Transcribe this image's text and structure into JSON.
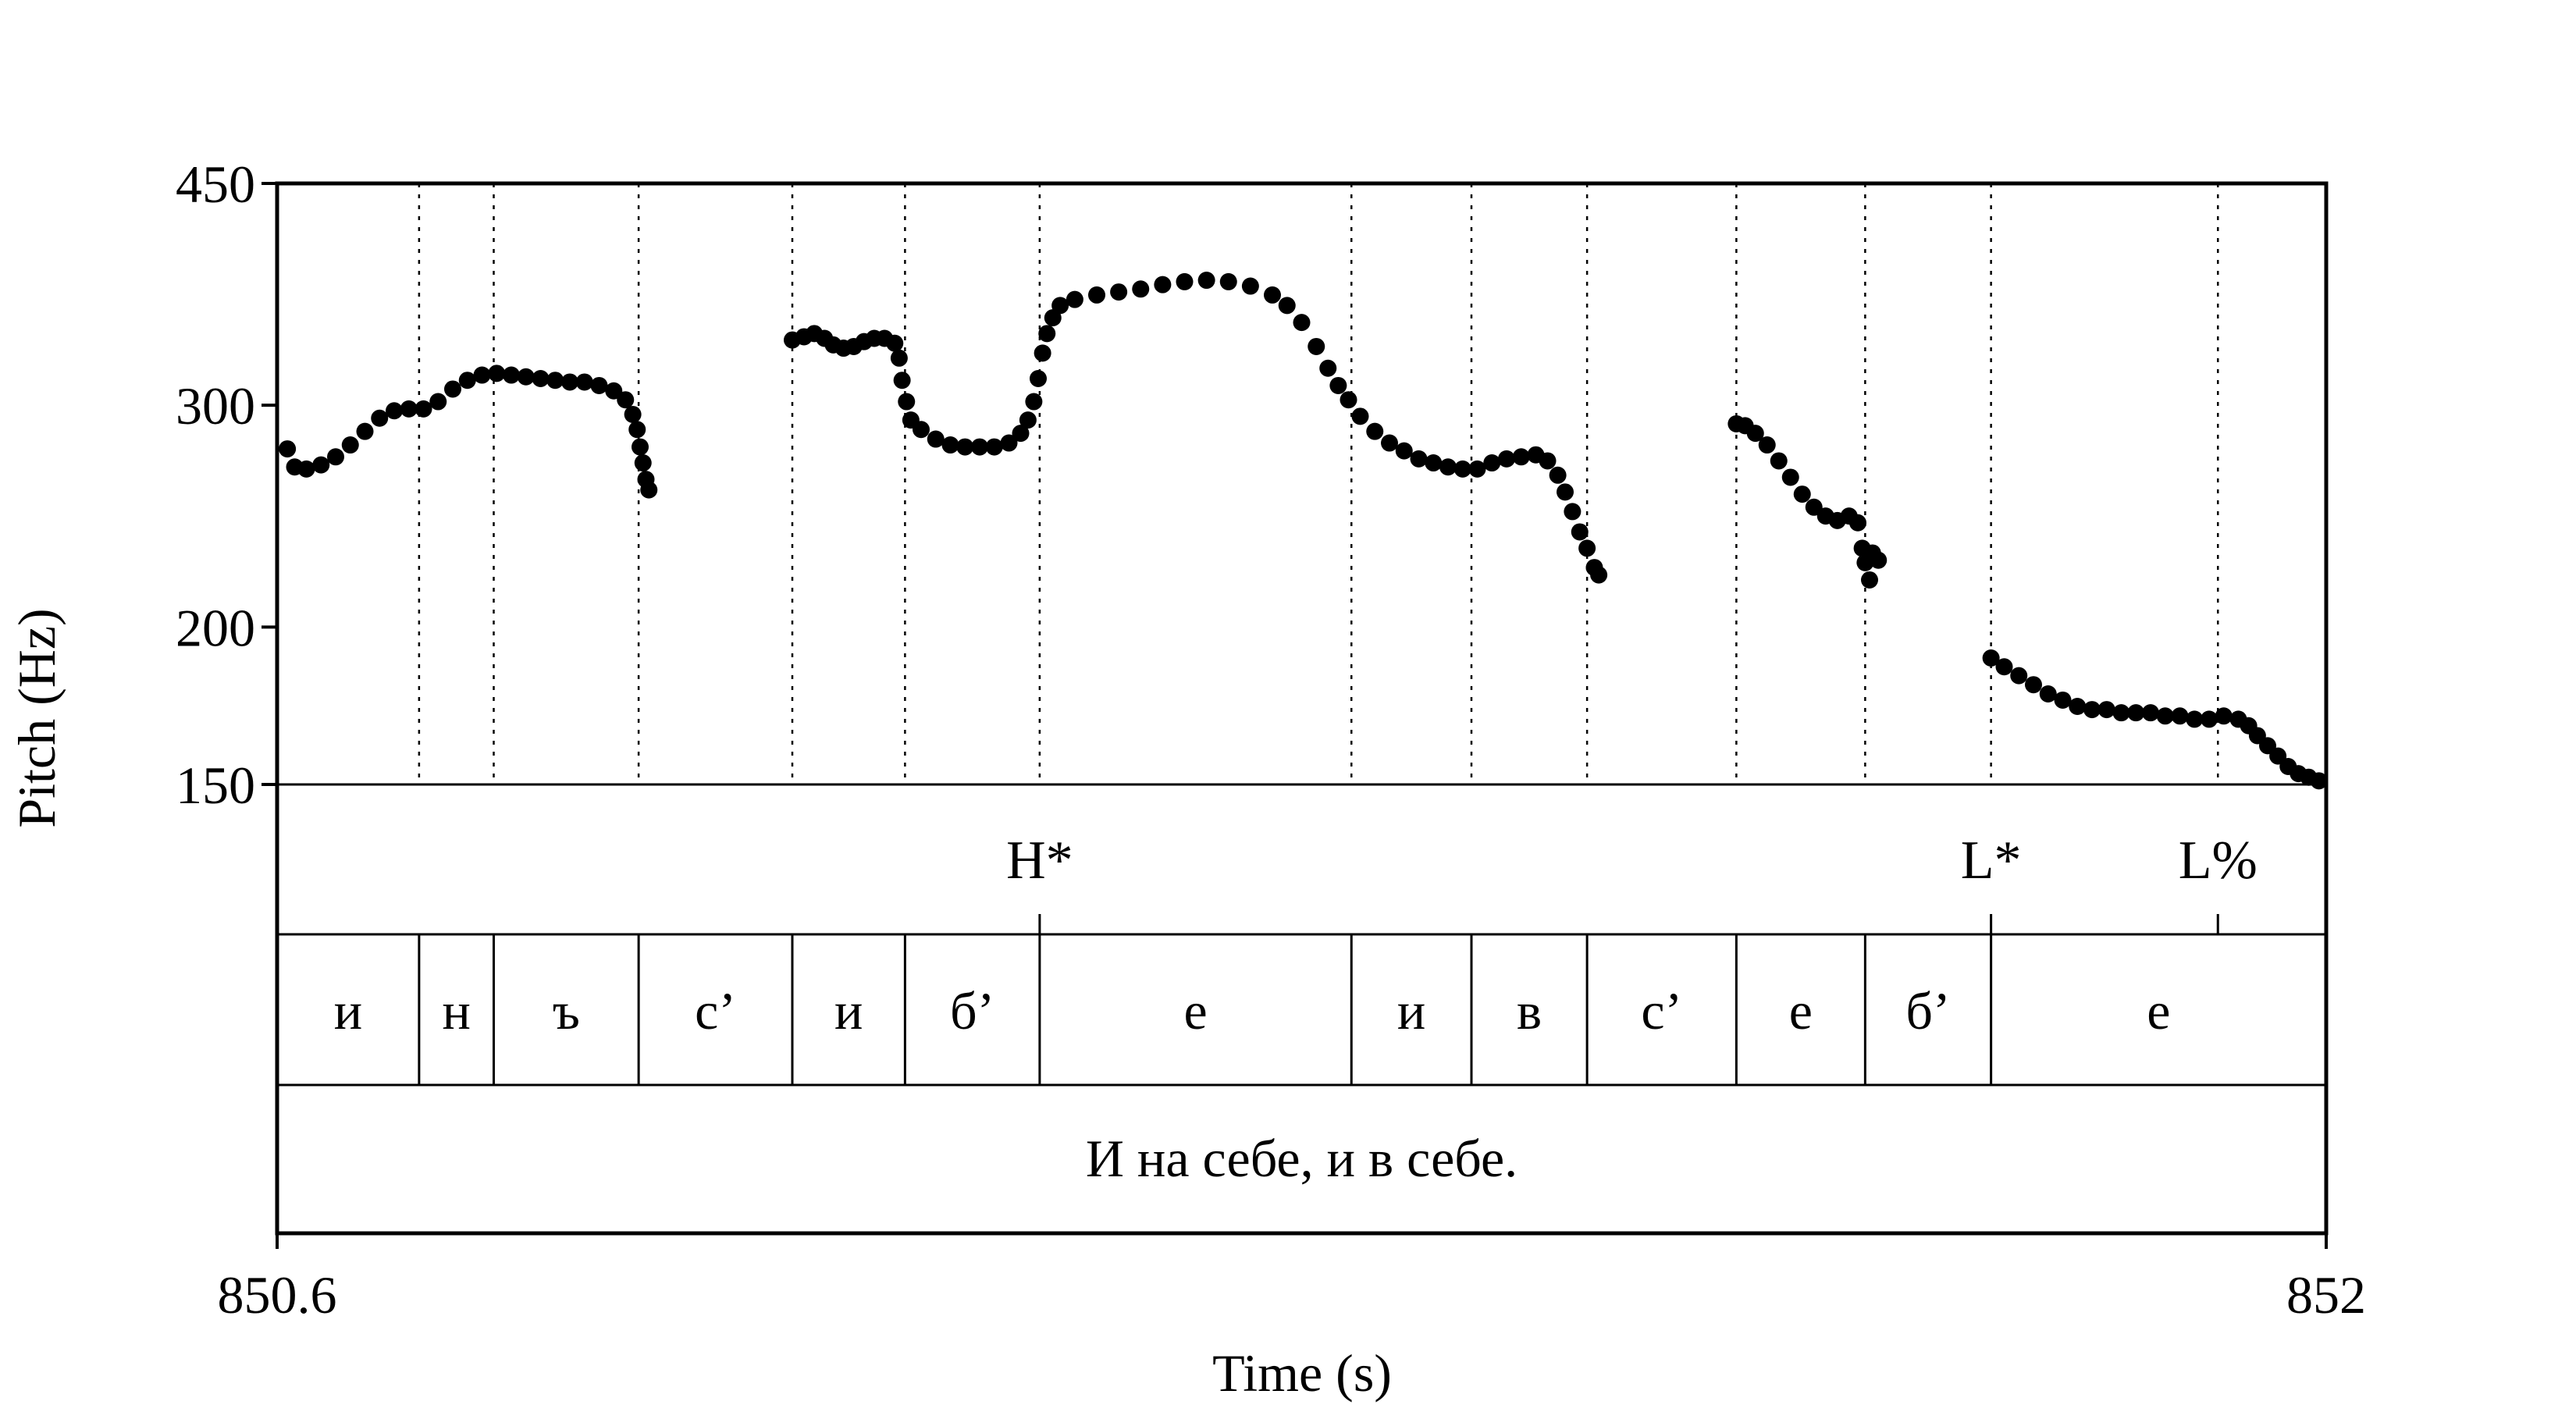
{
  "chart_data": {
    "type": "scatter",
    "title": "",
    "xlabel": "Time (s)",
    "ylabel": "Pitch (Hz)",
    "xlim": [
      850.6,
      852.0
    ],
    "ylim": [
      150,
      450
    ],
    "y_scale": "log",
    "x_tick_labels": [
      "850.6",
      "852"
    ],
    "y_tick_labels": [
      "450",
      "300",
      "200",
      "150"
    ],
    "y_ticks": [
      450,
      300,
      200,
      150
    ],
    "grid": false,
    "legend": "none",
    "point_color": "#000000",
    "segment_boundaries": [
      850.697,
      850.748,
      850.847,
      850.952,
      851.029,
      851.121,
      851.334,
      851.416,
      851.495,
      851.597,
      851.685,
      851.771,
      851.926
    ],
    "tone_tier": [
      {
        "time": 851.121,
        "label": "H*"
      },
      {
        "time": 851.771,
        "label": "L*"
      },
      {
        "time": 851.926,
        "label": "L%"
      }
    ],
    "segment_tier": [
      {
        "start": 850.6,
        "end": 850.697,
        "label": "и"
      },
      {
        "start": 850.697,
        "end": 850.748,
        "label": "н"
      },
      {
        "start": 850.748,
        "end": 850.847,
        "label": "ъ"
      },
      {
        "start": 850.847,
        "end": 850.952,
        "label": "с’"
      },
      {
        "start": 850.952,
        "end": 851.029,
        "label": "и"
      },
      {
        "start": 851.029,
        "end": 851.121,
        "label": "б’"
      },
      {
        "start": 851.121,
        "end": 851.334,
        "label": "е"
      },
      {
        "start": 851.334,
        "end": 851.416,
        "label": "и"
      },
      {
        "start": 851.416,
        "end": 851.495,
        "label": "в"
      },
      {
        "start": 851.495,
        "end": 851.597,
        "label": "с’"
      },
      {
        "start": 851.597,
        "end": 851.685,
        "label": "е"
      },
      {
        "start": 851.685,
        "end": 851.771,
        "label": "б’"
      },
      {
        "start": 851.771,
        "end": 852.0,
        "label": "е"
      }
    ],
    "sentence_tier": {
      "start": 850.6,
      "end": 852.0,
      "label": "И на себе, и в себе."
    },
    "series": [
      {
        "points": [
          [
            850.607,
            277
          ],
          [
            850.612,
            268
          ],
          [
            850.62,
            267
          ],
          [
            850.63,
            269
          ],
          [
            850.64,
            273
          ],
          [
            850.65,
            279
          ],
          [
            850.66,
            286
          ],
          [
            850.67,
            293
          ],
          [
            850.68,
            297
          ],
          [
            850.69,
            298
          ],
          [
            850.7,
            298
          ],
          [
            850.71,
            302
          ],
          [
            850.72,
            309
          ],
          [
            850.73,
            314
          ],
          [
            850.74,
            317
          ],
          [
            850.75,
            318
          ],
          [
            850.76,
            317
          ],
          [
            850.77,
            316
          ],
          [
            850.78,
            315
          ],
          [
            850.79,
            314
          ],
          [
            850.8,
            313
          ],
          [
            850.81,
            313
          ],
          [
            850.82,
            311
          ],
          [
            850.83,
            308
          ],
          [
            850.838,
            303
          ],
          [
            850.843,
            295
          ],
          [
            850.846,
            287
          ],
          [
            850.848,
            278
          ],
          [
            850.85,
            270
          ],
          [
            850.852,
            262
          ],
          [
            850.854,
            257
          ]
        ]
      },
      {
        "points": [
          [
            850.952,
            338
          ],
          [
            850.96,
            340
          ],
          [
            850.967,
            342
          ],
          [
            850.974,
            339
          ],
          [
            850.98,
            335
          ],
          [
            850.987,
            333
          ],
          [
            850.994,
            334
          ],
          [
            851.001,
            337
          ],
          [
            851.008,
            339
          ],
          [
            851.015,
            339
          ],
          [
            851.022,
            336
          ],
          [
            851.025,
            327
          ],
          [
            851.027,
            314
          ],
          [
            851.03,
            302
          ],
          [
            851.033,
            292
          ],
          [
            851.04,
            287
          ],
          [
            851.05,
            282
          ],
          [
            851.06,
            279
          ],
          [
            851.07,
            278
          ],
          [
            851.08,
            278
          ],
          [
            851.09,
            278
          ],
          [
            851.1,
            280
          ],
          [
            851.108,
            285
          ],
          [
            851.113,
            292
          ],
          [
            851.117,
            302
          ],
          [
            851.12,
            315
          ],
          [
            851.123,
            330
          ],
          [
            851.126,
            342
          ],
          [
            851.13,
            352
          ],
          [
            851.135,
            360
          ],
          [
            851.145,
            364
          ],
          [
            851.16,
            367
          ],
          [
            851.175,
            369
          ],
          [
            851.19,
            371
          ],
          [
            851.205,
            374
          ],
          [
            851.22,
            376
          ],
          [
            851.235,
            377
          ],
          [
            851.25,
            376
          ],
          [
            851.265,
            373
          ],
          [
            851.28,
            367
          ],
          [
            851.29,
            360
          ],
          [
            851.3,
            349
          ],
          [
            851.31,
            334
          ],
          [
            851.318,
            321
          ],
          [
            851.325,
            311
          ],
          [
            851.332,
            303
          ],
          [
            851.34,
            294
          ],
          [
            851.35,
            286
          ],
          [
            851.36,
            280
          ],
          [
            851.37,
            276
          ],
          [
            851.38,
            272
          ],
          [
            851.39,
            270
          ],
          [
            851.4,
            268
          ],
          [
            851.41,
            267
          ],
          [
            851.42,
            267
          ],
          [
            851.43,
            270
          ],
          [
            851.44,
            272
          ],
          [
            851.45,
            273
          ],
          [
            851.46,
            274
          ],
          [
            851.468,
            271
          ],
          [
            851.475,
            264
          ],
          [
            851.48,
            256
          ],
          [
            851.485,
            247
          ],
          [
            851.49,
            238
          ],
          [
            851.495,
            231
          ],
          [
            851.5,
            223
          ],
          [
            851.503,
            220
          ]
        ]
      },
      {
        "points": [
          [
            851.597,
            290
          ],
          [
            851.603,
            289
          ],
          [
            851.61,
            285
          ],
          [
            851.618,
            279
          ],
          [
            851.626,
            271
          ],
          [
            851.634,
            263
          ],
          [
            851.642,
            255
          ],
          [
            851.65,
            249
          ],
          [
            851.658,
            245
          ],
          [
            851.666,
            243
          ],
          [
            851.674,
            245
          ],
          [
            851.68,
            242
          ],
          [
            851.683,
            231
          ],
          [
            851.685,
            225
          ],
          [
            851.688,
            218
          ],
          [
            851.69,
            229
          ],
          [
            851.694,
            226
          ]
        ]
      },
      {
        "points": [
          [
            851.771,
            189
          ],
          [
            851.78,
            186
          ],
          [
            851.79,
            183
          ],
          [
            851.8,
            180
          ],
          [
            851.81,
            177
          ],
          [
            851.82,
            175
          ],
          [
            851.83,
            173
          ],
          [
            851.84,
            172
          ],
          [
            851.85,
            172
          ],
          [
            851.86,
            171
          ],
          [
            851.87,
            171
          ],
          [
            851.88,
            171
          ],
          [
            851.89,
            170
          ],
          [
            851.9,
            170
          ],
          [
            851.91,
            169
          ],
          [
            851.92,
            169
          ],
          [
            851.93,
            170
          ],
          [
            851.94,
            169
          ],
          [
            851.947,
            167
          ],
          [
            851.953,
            164
          ],
          [
            851.96,
            161
          ],
          [
            851.967,
            158
          ],
          [
            851.974,
            155
          ],
          [
            851.981,
            153
          ],
          [
            851.988,
            152
          ],
          [
            851.995,
            151
          ]
        ]
      }
    ]
  }
}
